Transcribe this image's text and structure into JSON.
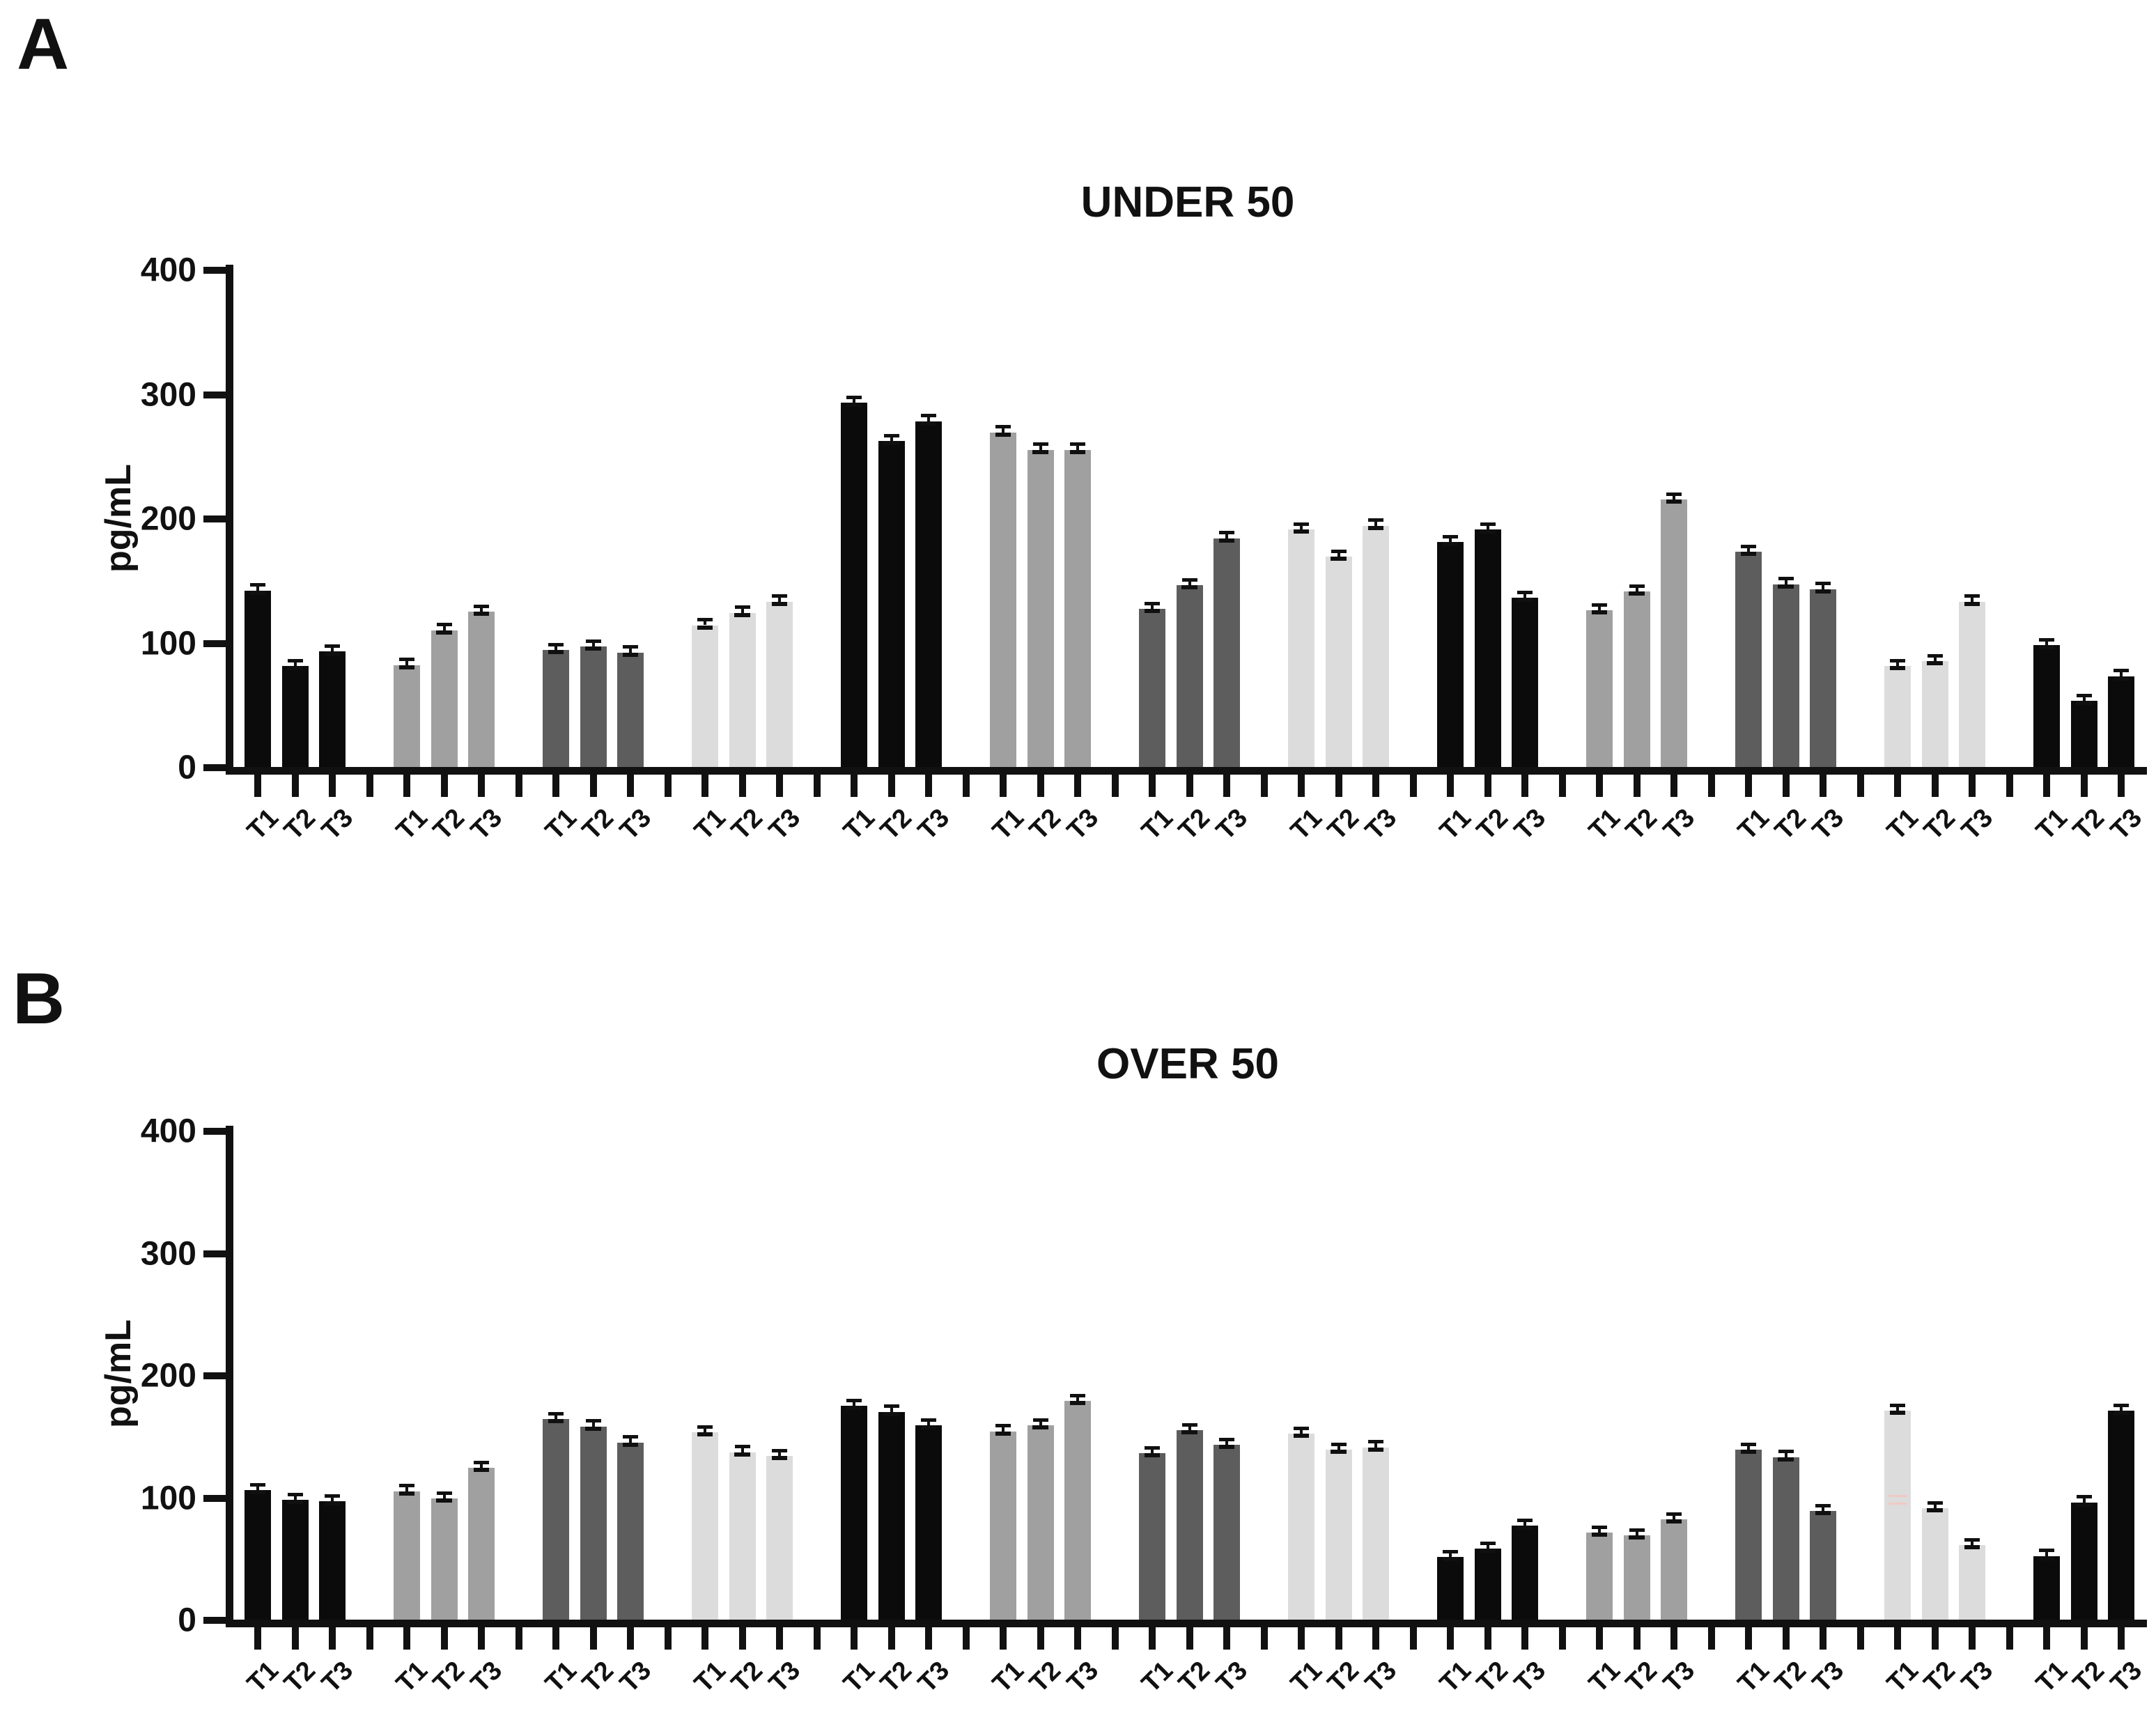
{
  "colors": {
    "black": "#0b0b0b",
    "gray": "#a0a0a0",
    "darkgray": "#5d5d5d",
    "lightgray": "#dcdcdc"
  },
  "chart_data": [
    {
      "panel": "A",
      "type": "bar",
      "title": "UNDER 50",
      "ylabel": "pg/mL",
      "xlabel": "",
      "ylim": [
        0,
        400
      ],
      "yticks": [
        0,
        100,
        200,
        300,
        400
      ],
      "grid": false,
      "legend": "none",
      "categories": [
        "T1",
        "T2",
        "T3"
      ],
      "error_pg": 3,
      "groups": [
        {
          "color": "black",
          "values": [
            142,
            81,
            93
          ]
        },
        {
          "color": "gray",
          "values": [
            82,
            110,
            125
          ]
        },
        {
          "color": "darkgray",
          "values": [
            94,
            97,
            92
          ]
        },
        {
          "color": "lightgray",
          "values": [
            114,
            124,
            133
          ]
        },
        {
          "color": "black",
          "values": [
            293,
            262,
            278
          ]
        },
        {
          "color": "gray",
          "values": [
            269,
            255,
            255
          ]
        },
        {
          "color": "darkgray",
          "values": [
            127,
            146,
            184
          ]
        },
        {
          "color": "lightgray",
          "values": [
            191,
            169,
            194
          ]
        },
        {
          "color": "black",
          "values": [
            181,
            191,
            136
          ]
        },
        {
          "color": "gray",
          "values": [
            126,
            141,
            215
          ]
        },
        {
          "color": "darkgray",
          "values": [
            173,
            147,
            143
          ]
        },
        {
          "color": "lightgray",
          "values": [
            81,
            85,
            133
          ]
        },
        {
          "color": "black",
          "values": [
            98,
            53,
            73
          ]
        }
      ]
    },
    {
      "panel": "B",
      "type": "bar",
      "title": "OVER 50",
      "ylabel": "pg/mL",
      "xlabel": "",
      "ylim": [
        0,
        400
      ],
      "yticks": [
        0,
        100,
        200,
        300,
        400
      ],
      "grid": false,
      "legend": "none",
      "categories": [
        "T1",
        "T2",
        "T3"
      ],
      "error_pg": 3,
      "groups": [
        {
          "color": "black",
          "values": [
            106,
            98,
            97
          ]
        },
        {
          "color": "gray",
          "values": [
            105,
            99,
            124
          ]
        },
        {
          "color": "darkgray",
          "values": [
            164,
            158,
            145
          ]
        },
        {
          "color": "lightgray",
          "values": [
            153,
            137,
            134
          ]
        },
        {
          "color": "black",
          "values": [
            175,
            170,
            159
          ]
        },
        {
          "color": "gray",
          "values": [
            154,
            159,
            179
          ]
        },
        {
          "color": "darkgray",
          "values": [
            136,
            155,
            143
          ]
        },
        {
          "color": "lightgray",
          "values": [
            152,
            139,
            141
          ]
        },
        {
          "color": "black",
          "values": [
            51,
            58,
            77
          ]
        },
        {
          "color": "gray",
          "values": [
            71,
            69,
            82
          ]
        },
        {
          "color": "darkgray",
          "values": [
            139,
            133,
            89
          ]
        },
        {
          "color": "lightgray",
          "values": [
            171,
            91,
            61
          ]
        },
        {
          "color": "black",
          "values": [
            52,
            96,
            171
          ]
        }
      ]
    }
  ],
  "annotations": {
    "pink_artifact": {
      "chart_index": 1,
      "group_index": 11,
      "bar_index": 0,
      "values_pg": [
        96,
        102
      ],
      "color": "#f0c9c4"
    }
  }
}
